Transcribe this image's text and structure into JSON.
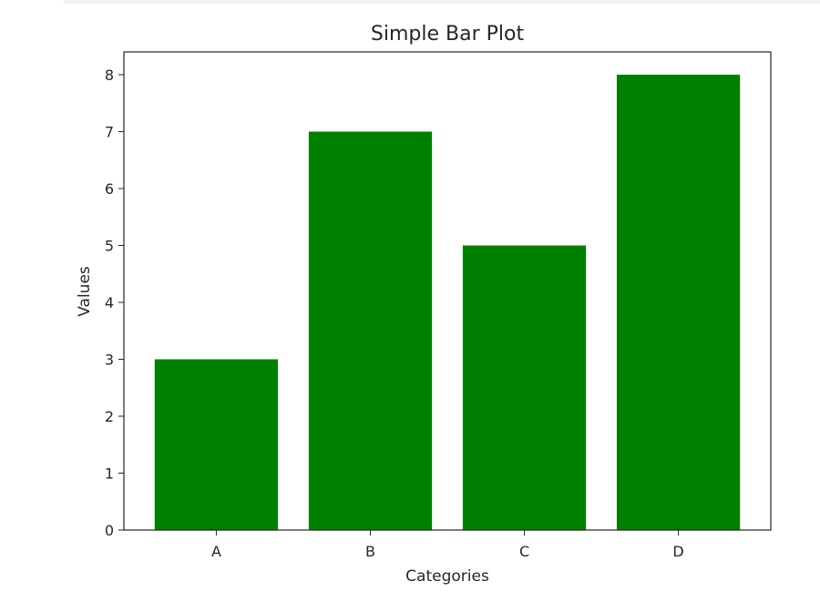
{
  "chart_data": {
    "type": "bar",
    "title": "Simple Bar Plot",
    "xlabel": "Categories",
    "ylabel": "Values",
    "categories": [
      "A",
      "B",
      "C",
      "D"
    ],
    "values": [
      3,
      7,
      5,
      8
    ],
    "ylim": [
      0,
      8.4
    ],
    "yticks": [
      0,
      1,
      2,
      3,
      4,
      5,
      6,
      7,
      8
    ],
    "bar_color": "#008000",
    "grid": false,
    "legend": "none"
  }
}
